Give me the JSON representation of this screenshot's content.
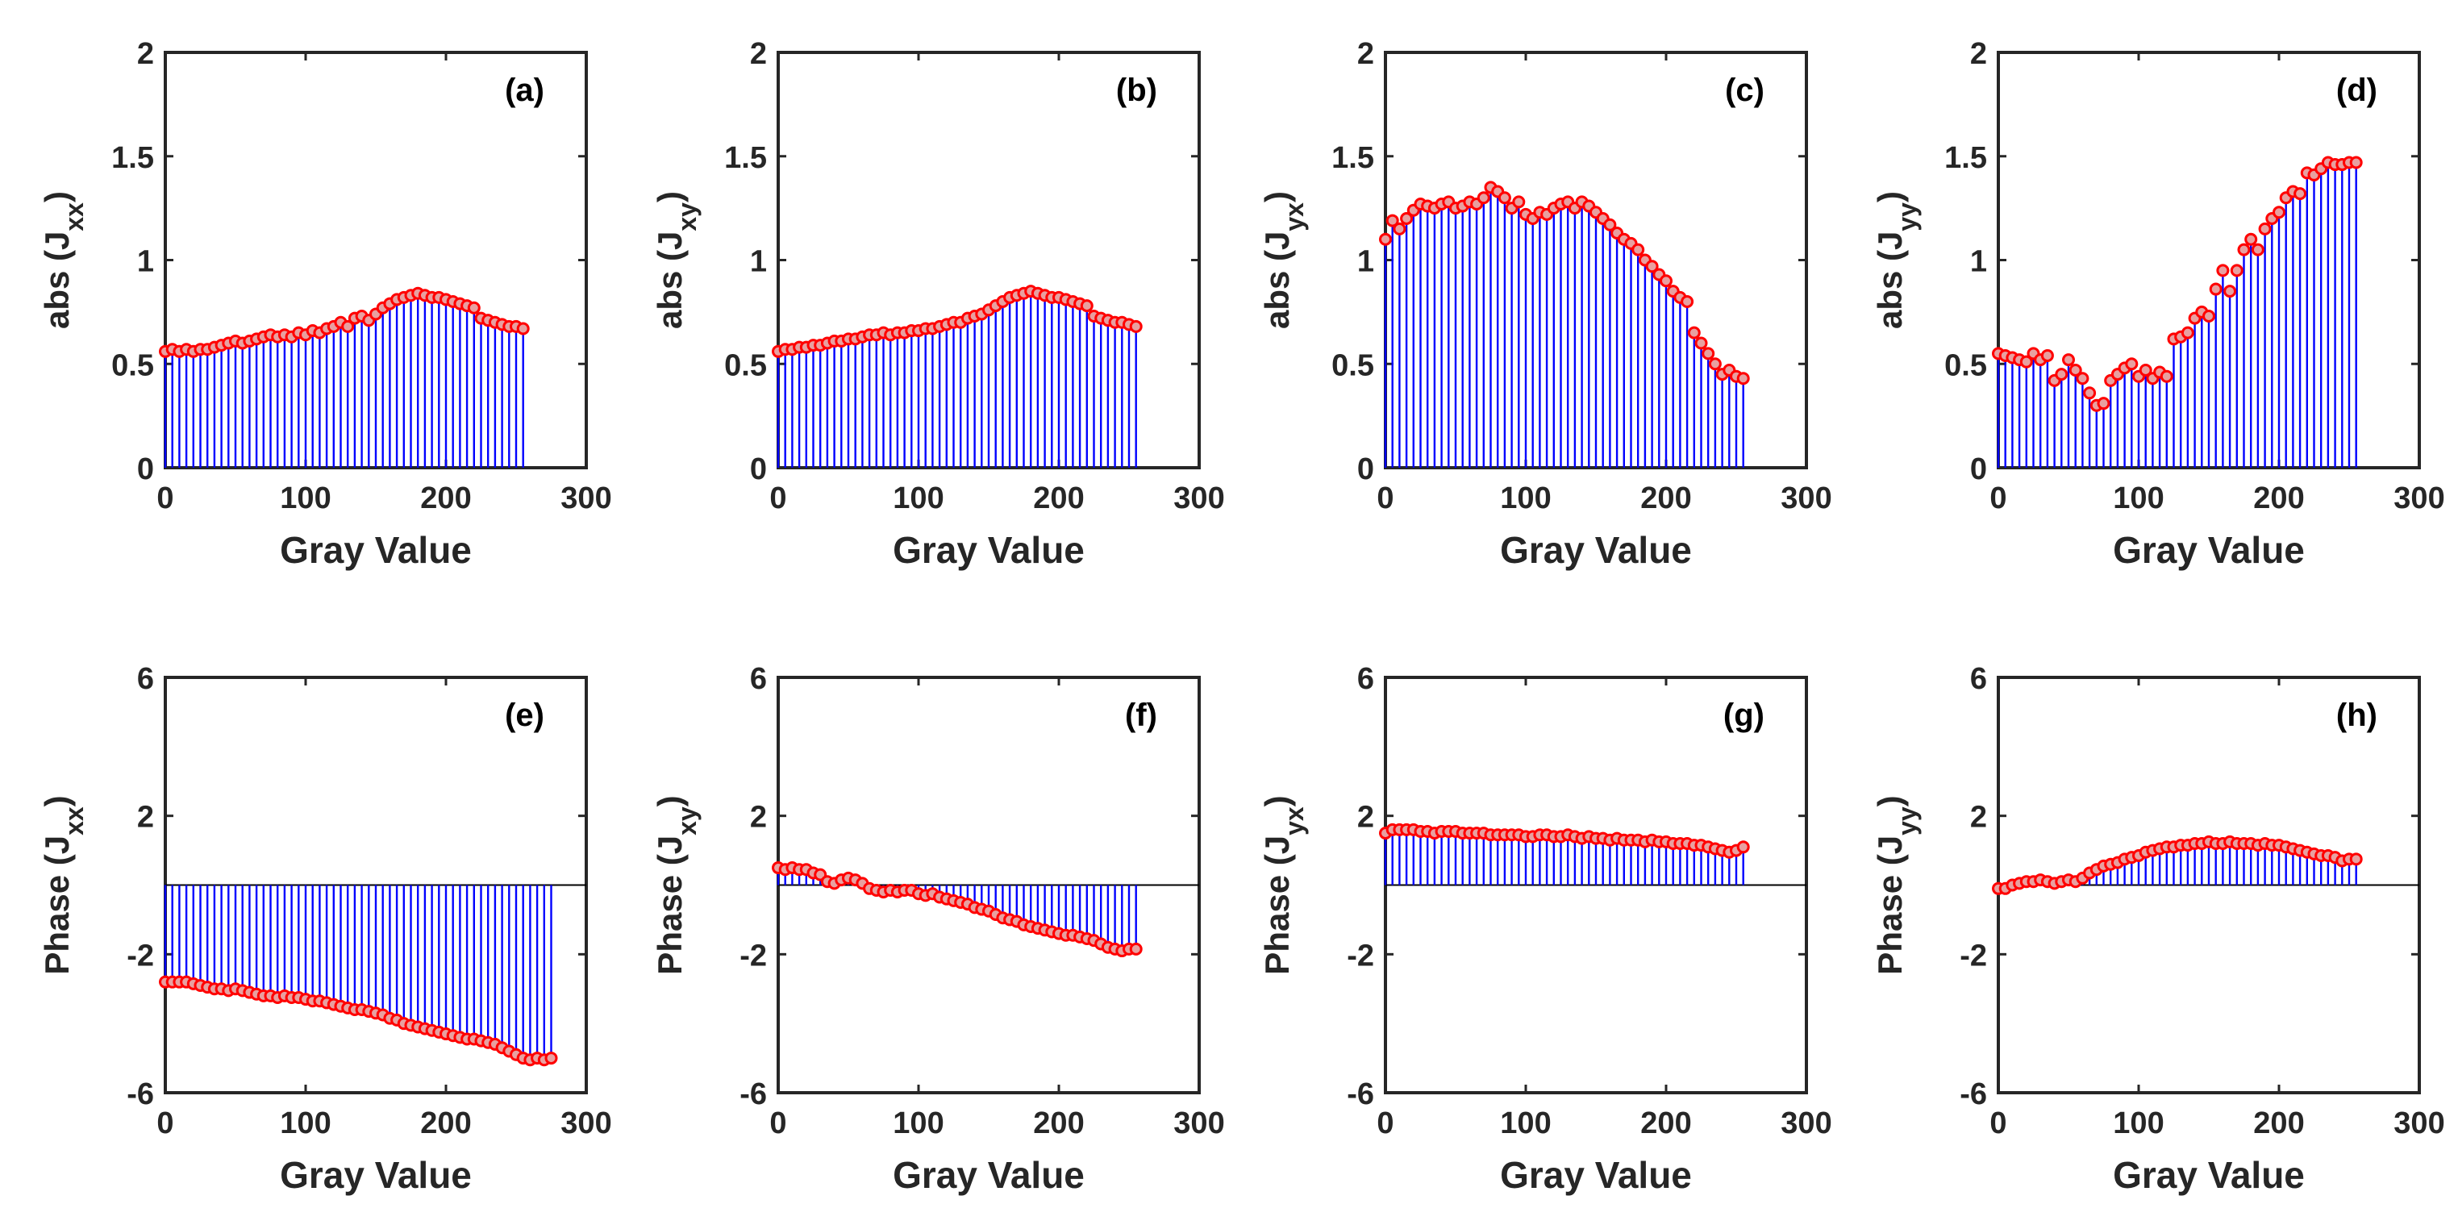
{
  "figure": {
    "colors": {
      "stem": "#0000ff",
      "marker_edge": "#ff0000",
      "marker_fill": "#e8a0a0",
      "axis": "#262626"
    }
  },
  "chart_data": [
    {
      "type": "stem",
      "panel": "(a)",
      "ylabel": "abs",
      "sub": "xx",
      "xlabel": "Gray Value",
      "xlim": [
        0,
        300
      ],
      "ylim": [
        0,
        2
      ],
      "xticks": [
        "0",
        "100",
        "200",
        "300"
      ],
      "yticks": [
        "0",
        "0.5",
        "1",
        "1.5",
        "2"
      ],
      "x_start": 0,
      "x_step": 5,
      "values": [
        0.56,
        0.57,
        0.56,
        0.57,
        0.56,
        0.57,
        0.57,
        0.58,
        0.59,
        0.6,
        0.61,
        0.6,
        0.61,
        0.62,
        0.63,
        0.64,
        0.63,
        0.64,
        0.63,
        0.65,
        0.64,
        0.66,
        0.65,
        0.67,
        0.68,
        0.7,
        0.68,
        0.72,
        0.73,
        0.71,
        0.74,
        0.77,
        0.79,
        0.81,
        0.82,
        0.83,
        0.84,
        0.83,
        0.82,
        0.82,
        0.81,
        0.8,
        0.79,
        0.78,
        0.77,
        0.72,
        0.71,
        0.7,
        0.69,
        0.68,
        0.68,
        0.67
      ]
    },
    {
      "type": "stem",
      "panel": "(b)",
      "ylabel": "abs",
      "sub": "xy",
      "xlabel": "Gray Value",
      "xlim": [
        0,
        300
      ],
      "ylim": [
        0,
        2
      ],
      "xticks": [
        "0",
        "100",
        "200",
        "300"
      ],
      "yticks": [
        "0",
        "0.5",
        "1",
        "1.5",
        "2"
      ],
      "x_start": 0,
      "x_step": 5,
      "values": [
        0.56,
        0.57,
        0.57,
        0.58,
        0.58,
        0.59,
        0.59,
        0.6,
        0.61,
        0.61,
        0.62,
        0.62,
        0.63,
        0.64,
        0.64,
        0.65,
        0.64,
        0.65,
        0.65,
        0.66,
        0.66,
        0.67,
        0.67,
        0.68,
        0.69,
        0.7,
        0.7,
        0.72,
        0.73,
        0.74,
        0.76,
        0.78,
        0.8,
        0.82,
        0.83,
        0.84,
        0.85,
        0.84,
        0.83,
        0.82,
        0.82,
        0.81,
        0.8,
        0.79,
        0.78,
        0.73,
        0.72,
        0.71,
        0.7,
        0.7,
        0.69,
        0.68
      ]
    },
    {
      "type": "stem",
      "panel": "(c)",
      "ylabel": "abs",
      "sub": "yx",
      "xlabel": "Gray Value",
      "xlim": [
        0,
        300
      ],
      "ylim": [
        0,
        2
      ],
      "xticks": [
        "0",
        "100",
        "200",
        "300"
      ],
      "yticks": [
        "0",
        "0.5",
        "1",
        "1.5",
        "2"
      ],
      "x_start": 0,
      "x_step": 5,
      "values": [
        1.1,
        1.19,
        1.15,
        1.2,
        1.24,
        1.27,
        1.26,
        1.25,
        1.27,
        1.28,
        1.25,
        1.26,
        1.28,
        1.27,
        1.3,
        1.35,
        1.33,
        1.3,
        1.25,
        1.28,
        1.22,
        1.2,
        1.23,
        1.22,
        1.25,
        1.27,
        1.28,
        1.25,
        1.28,
        1.26,
        1.23,
        1.2,
        1.17,
        1.13,
        1.1,
        1.08,
        1.05,
        1.0,
        0.97,
        0.93,
        0.9,
        0.85,
        0.82,
        0.8,
        0.65,
        0.6,
        0.55,
        0.5,
        0.45,
        0.47,
        0.44,
        0.43
      ]
    },
    {
      "type": "stem",
      "panel": "(d)",
      "ylabel": "abs",
      "sub": "yy",
      "xlabel": "Gray Value",
      "xlim": [
        0,
        300
      ],
      "ylim": [
        0,
        2
      ],
      "xticks": [
        "0",
        "100",
        "200",
        "300"
      ],
      "yticks": [
        "0",
        "0.5",
        "1",
        "1.5",
        "2"
      ],
      "x_start": 0,
      "x_step": 5,
      "values": [
        0.55,
        0.54,
        0.53,
        0.52,
        0.51,
        0.55,
        0.52,
        0.54,
        0.42,
        0.45,
        0.52,
        0.47,
        0.43,
        0.36,
        0.3,
        0.31,
        0.42,
        0.45,
        0.48,
        0.5,
        0.44,
        0.47,
        0.43,
        0.46,
        0.44,
        0.62,
        0.63,
        0.65,
        0.72,
        0.75,
        0.73,
        0.86,
        0.95,
        0.85,
        0.95,
        1.05,
        1.1,
        1.05,
        1.15,
        1.2,
        1.23,
        1.3,
        1.33,
        1.32,
        1.42,
        1.41,
        1.44,
        1.47,
        1.46,
        1.46,
        1.47,
        1.47
      ]
    },
    {
      "type": "stem",
      "panel": "(e)",
      "ylabel": "Phase",
      "sub": "xx",
      "xlabel": "Gray Value",
      "xlim": [
        0,
        300
      ],
      "ylim": [
        -6,
        6
      ],
      "xticks": [
        "0",
        "100",
        "200",
        "300"
      ],
      "yticks": [
        "-6",
        "-2",
        "2",
        "6"
      ],
      "x_start": 0,
      "x_step": 5,
      "values": [
        -2.8,
        -2.8,
        -2.8,
        -2.8,
        -2.85,
        -2.9,
        -2.95,
        -3.0,
        -3.0,
        -3.05,
        -3.0,
        -3.05,
        -3.1,
        -3.15,
        -3.2,
        -3.2,
        -3.25,
        -3.2,
        -3.25,
        -3.25,
        -3.3,
        -3.35,
        -3.35,
        -3.4,
        -3.45,
        -3.5,
        -3.55,
        -3.6,
        -3.6,
        -3.65,
        -3.7,
        -3.75,
        -3.85,
        -3.9,
        -4.0,
        -4.05,
        -4.1,
        -4.15,
        -4.2,
        -4.25,
        -4.3,
        -4.35,
        -4.4,
        -4.45,
        -4.45,
        -4.5,
        -4.55,
        -4.6,
        -4.7,
        -4.8,
        -4.9,
        -5.0,
        -5.05,
        -5.0,
        -5.05,
        -5.0
      ]
    },
    {
      "type": "stem",
      "panel": "(f)",
      "ylabel": "Phase",
      "sub": "xy",
      "xlabel": "Gray Value",
      "xlim": [
        0,
        300
      ],
      "ylim": [
        -6,
        6
      ],
      "xticks": [
        "0",
        "100",
        "200",
        "300"
      ],
      "yticks": [
        "-6",
        "-2",
        "2",
        "6"
      ],
      "x_start": 0,
      "x_step": 5,
      "values": [
        0.5,
        0.45,
        0.5,
        0.45,
        0.45,
        0.35,
        0.3,
        0.1,
        0.05,
        0.15,
        0.2,
        0.15,
        0.05,
        -0.1,
        -0.15,
        -0.2,
        -0.15,
        -0.2,
        -0.15,
        -0.15,
        -0.25,
        -0.3,
        -0.25,
        -0.35,
        -0.4,
        -0.45,
        -0.5,
        -0.55,
        -0.65,
        -0.7,
        -0.75,
        -0.85,
        -0.95,
        -1.0,
        -1.05,
        -1.15,
        -1.2,
        -1.25,
        -1.3,
        -1.35,
        -1.4,
        -1.45,
        -1.45,
        -1.5,
        -1.55,
        -1.6,
        -1.7,
        -1.8,
        -1.85,
        -1.9,
        -1.85,
        -1.85
      ]
    },
    {
      "type": "stem",
      "panel": "(g)",
      "ylabel": "Phase",
      "sub": "yx",
      "xlabel": "Gray Value",
      "xlim": [
        0,
        300
      ],
      "ylim": [
        -6,
        6
      ],
      "xticks": [
        "0",
        "100",
        "200",
        "300"
      ],
      "yticks": [
        "-6",
        "-2",
        "2",
        "6"
      ],
      "x_start": 0,
      "x_step": 5,
      "values": [
        1.5,
        1.6,
        1.6,
        1.6,
        1.6,
        1.55,
        1.55,
        1.5,
        1.55,
        1.55,
        1.55,
        1.5,
        1.5,
        1.5,
        1.5,
        1.45,
        1.45,
        1.45,
        1.45,
        1.45,
        1.4,
        1.4,
        1.45,
        1.45,
        1.4,
        1.4,
        1.45,
        1.4,
        1.35,
        1.4,
        1.35,
        1.35,
        1.3,
        1.35,
        1.3,
        1.3,
        1.3,
        1.25,
        1.3,
        1.25,
        1.25,
        1.2,
        1.2,
        1.2,
        1.15,
        1.15,
        1.1,
        1.05,
        1.0,
        0.95,
        1.0,
        1.1
      ]
    },
    {
      "type": "stem",
      "panel": "(h)",
      "ylabel": "Phase",
      "sub": "yy",
      "xlabel": "Gray Value",
      "xlim": [
        0,
        300
      ],
      "ylim": [
        -6,
        6
      ],
      "xticks": [
        "0",
        "100",
        "200",
        "300"
      ],
      "yticks": [
        "-6",
        "-2",
        "2",
        "6"
      ],
      "x_start": 0,
      "x_step": 5,
      "values": [
        -0.1,
        -0.1,
        0.0,
        0.05,
        0.1,
        0.1,
        0.15,
        0.1,
        0.05,
        0.1,
        0.15,
        0.1,
        0.2,
        0.35,
        0.45,
        0.55,
        0.6,
        0.65,
        0.75,
        0.8,
        0.85,
        0.95,
        1.0,
        1.05,
        1.1,
        1.1,
        1.15,
        1.15,
        1.2,
        1.2,
        1.25,
        1.2,
        1.2,
        1.25,
        1.2,
        1.2,
        1.2,
        1.15,
        1.2,
        1.15,
        1.15,
        1.1,
        1.05,
        1.0,
        0.95,
        0.9,
        0.85,
        0.85,
        0.8,
        0.7,
        0.75,
        0.75
      ]
    }
  ]
}
